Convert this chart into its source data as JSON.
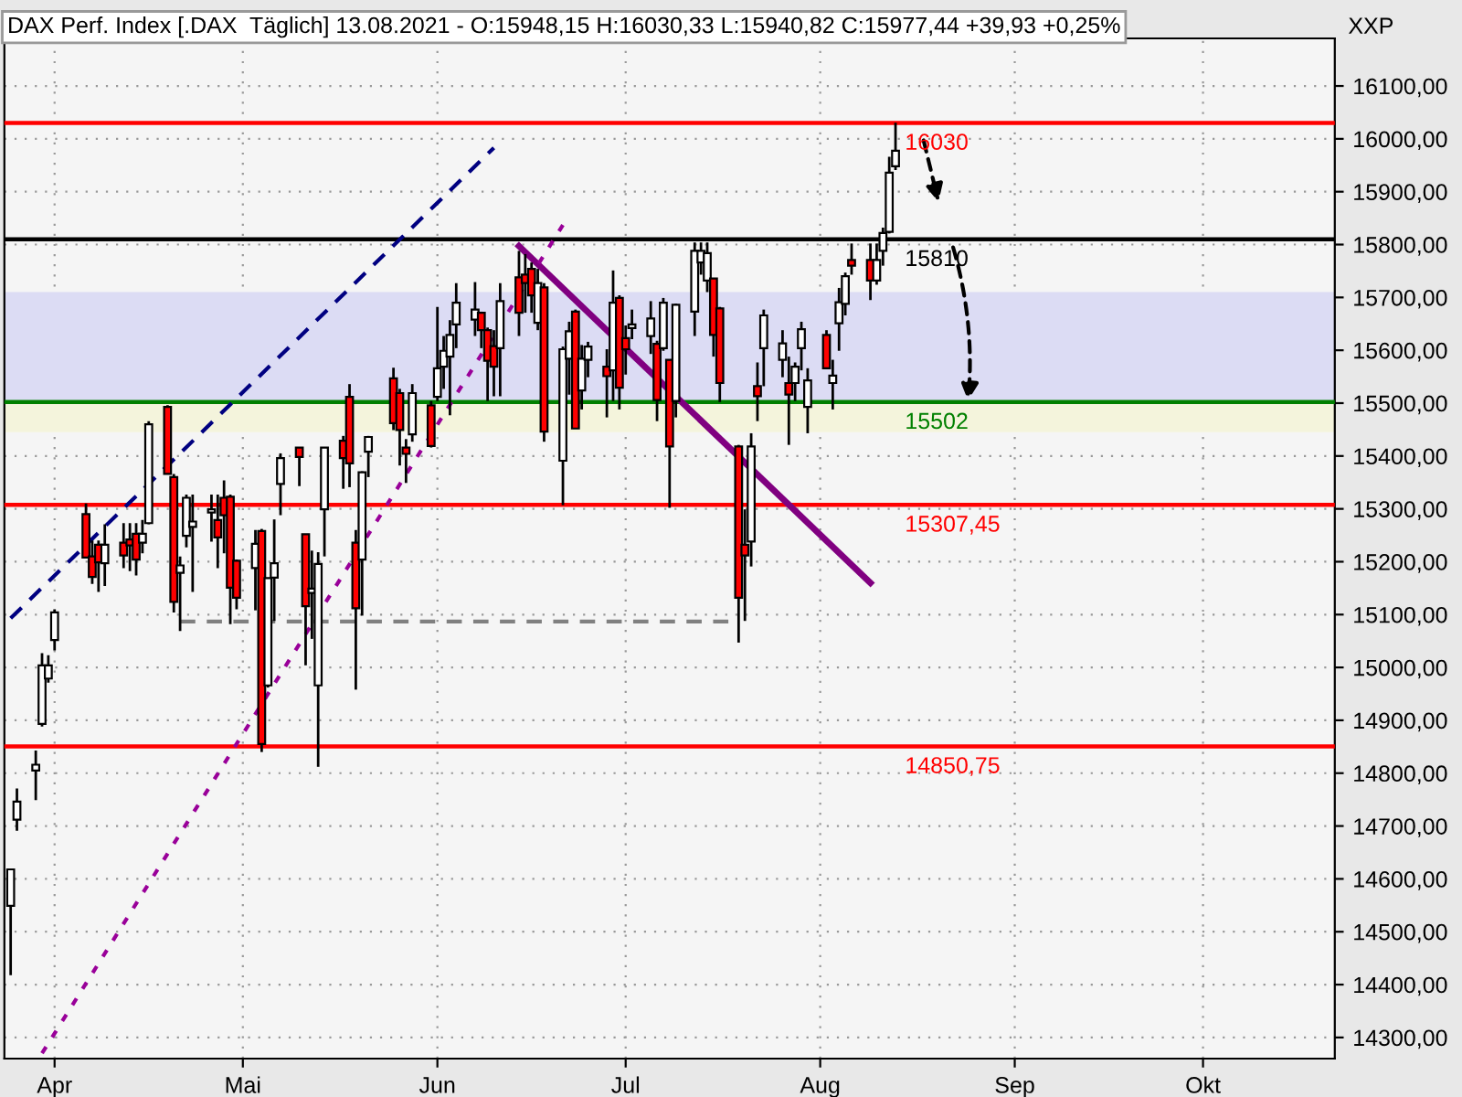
{
  "chart_data": {
    "type": "candlestick",
    "title": "DAX Perf. Index [.DAX  Täglich] 13.08.2021 - O:15948,15 H:16030,33 L:15940,82 C:15977,44 +39,93 +0,25%",
    "ylabel": "XXP",
    "series": [
      {
        "type": "candlestick",
        "x": [
          "2021-03-25",
          "2021-03-26",
          "2021-03-29",
          "2021-03-30",
          "2021-03-31",
          "2021-04-01",
          "2021-04-06",
          "2021-04-07",
          "2021-04-08",
          "2021-04-09",
          "2021-04-12",
          "2021-04-13",
          "2021-04-14",
          "2021-04-15",
          "2021-04-16",
          "2021-04-19",
          "2021-04-20",
          "2021-04-21",
          "2021-04-22",
          "2021-04-23",
          "2021-04-26",
          "2021-04-27",
          "2021-04-28",
          "2021-04-29",
          "2021-04-30",
          "2021-05-03",
          "2021-05-04",
          "2021-05-05",
          "2021-05-06",
          "2021-05-07",
          "2021-05-10",
          "2021-05-11",
          "2021-05-12",
          "2021-05-13",
          "2021-05-14",
          "2021-05-17",
          "2021-05-18",
          "2021-05-19",
          "2021-05-20",
          "2021-05-21",
          "2021-05-25",
          "2021-05-26",
          "2021-05-27",
          "2021-05-28",
          "2021-05-31",
          "2021-06-01",
          "2021-06-02",
          "2021-06-03",
          "2021-06-04",
          "2021-06-07",
          "2021-06-08",
          "2021-06-09",
          "2021-06-10",
          "2021-06-11",
          "2021-06-14",
          "2021-06-15",
          "2021-06-16",
          "2021-06-17",
          "2021-06-18",
          "2021-06-21",
          "2021-06-22",
          "2021-06-23",
          "2021-06-24",
          "2021-06-25",
          "2021-06-28",
          "2021-06-29",
          "2021-06-30",
          "2021-07-01",
          "2021-07-02",
          "2021-07-05",
          "2021-07-06",
          "2021-07-07",
          "2021-07-08",
          "2021-07-09",
          "2021-07-12",
          "2021-07-13",
          "2021-07-14",
          "2021-07-15",
          "2021-07-16",
          "2021-07-19",
          "2021-07-20",
          "2021-07-21",
          "2021-07-22",
          "2021-07-23",
          "2021-07-26",
          "2021-07-27",
          "2021-07-28",
          "2021-07-29",
          "2021-07-30",
          "2021-08-02",
          "2021-08-03",
          "2021-08-04",
          "2021-08-05",
          "2021-08-06",
          "2021-08-09",
          "2021-08-10",
          "2021-08-11",
          "2021-08-12",
          "2021-08-13"
        ],
        "ohlc": [
          [
            14549,
            14618,
            14418,
            14618
          ],
          [
            14712,
            14771,
            14691,
            14746
          ],
          [
            14805,
            14843,
            14749,
            14816
          ],
          [
            14893,
            15027,
            14888,
            15004
          ],
          [
            14979,
            15023,
            14971,
            15004
          ],
          [
            15052,
            15110,
            15032,
            15104
          ],
          [
            15290,
            15310,
            15208,
            15208
          ],
          [
            15210,
            15240,
            15158,
            15171
          ],
          [
            15232,
            15240,
            15143,
            15199
          ],
          [
            15197,
            15271,
            15154,
            15232
          ],
          [
            15236,
            15273,
            15188,
            15212
          ],
          [
            15242,
            15273,
            15182,
            15231
          ],
          [
            15253,
            15273,
            15174,
            15204
          ],
          [
            15236,
            15279,
            15216,
            15253
          ],
          [
            15273,
            15466,
            15271,
            15460
          ],
          [
            15493,
            15496,
            15366,
            15366
          ],
          [
            15360,
            15366,
            15104,
            15124
          ],
          [
            15179,
            15210,
            15069,
            15193
          ],
          [
            15249,
            15327,
            15227,
            15321
          ],
          [
            15266,
            15327,
            15143,
            15276
          ],
          [
            15293,
            15327,
            15238,
            15299
          ],
          [
            15279,
            15327,
            15188,
            15246
          ],
          [
            15321,
            15354,
            15216,
            15288
          ],
          [
            15323,
            15327,
            15082,
            15151
          ],
          [
            15202,
            15204,
            15110,
            15132
          ],
          [
            15188,
            15260,
            15108,
            15234
          ],
          [
            15258,
            15262,
            14840,
            14855
          ],
          [
            14966,
            15169,
            14962,
            15169
          ],
          [
            15170,
            15280,
            15088,
            15197
          ],
          [
            15347,
            15405,
            15288,
            15396
          ],
          [
            15416,
            15416,
            15343,
            15398
          ],
          [
            15252,
            15252,
            15004,
            15116
          ],
          [
            15141,
            15221,
            15054,
            15149
          ],
          [
            14966,
            15218,
            14812,
            15196
          ],
          [
            15299,
            15416,
            15210,
            15416
          ],
          [
            15429,
            15438,
            15338,
            15396
          ],
          [
            15512,
            15536,
            15341,
            15386
          ],
          [
            15236,
            15260,
            14958,
            15112
          ],
          [
            15204,
            15371,
            15098,
            15369
          ],
          [
            15408,
            15438,
            15360,
            15436
          ],
          [
            15547,
            15567,
            15449,
            15462
          ],
          [
            15519,
            15527,
            15382,
            15449
          ],
          [
            15416,
            15432,
            15349,
            15404
          ],
          [
            15441,
            15536,
            15427,
            15519
          ],
          [
            15496,
            15504,
            15416,
            15419
          ],
          [
            15512,
            15682,
            15504,
            15566
          ],
          [
            15569,
            15627,
            15527,
            15599
          ],
          [
            15588,
            15657,
            15477,
            15629
          ],
          [
            15649,
            15727,
            15604,
            15690
          ],
          [
            15658,
            15729,
            15627,
            15677
          ],
          [
            15671,
            15673,
            15604,
            15638
          ],
          [
            15638,
            15643,
            15504,
            15580
          ],
          [
            15608,
            15638,
            15513,
            15569
          ],
          [
            15604,
            15727,
            15513,
            15693
          ],
          [
            15738,
            15788,
            15627,
            15671
          ],
          [
            15743,
            15782,
            15671,
            15727
          ],
          [
            15754,
            15766,
            15671,
            15704
          ],
          [
            15652,
            15754,
            15638,
            15727
          ],
          [
            15719,
            15727,
            15427,
            15446
          ],
          [
            15391,
            15607,
            15307,
            15602
          ],
          [
            15584,
            15654,
            15516,
            15636
          ],
          [
            15673,
            15677,
            15452,
            15452
          ],
          [
            15524,
            15610,
            15488,
            15584
          ],
          [
            15582,
            15616,
            15549,
            15607
          ],
          [
            15569,
            15602,
            15473,
            15551
          ],
          [
            15562,
            15751,
            15504,
            15690
          ],
          [
            15699,
            15704,
            15488,
            15529
          ],
          [
            15623,
            15647,
            15554,
            15602
          ],
          [
            15642,
            15677,
            15621,
            15649
          ],
          [
            15627,
            15693,
            15593,
            15660
          ],
          [
            15612,
            15618,
            15466,
            15506
          ],
          [
            15604,
            15699,
            15599,
            15690
          ],
          [
            15582,
            15582,
            15302,
            15418
          ],
          [
            15504,
            15688,
            15473,
            15686
          ],
          [
            15673,
            15804,
            15627,
            15788
          ],
          [
            15766,
            15804,
            15743,
            15788
          ],
          [
            15732,
            15804,
            15710,
            15784
          ],
          [
            15736,
            15736,
            15588,
            15629
          ],
          [
            15679,
            15682,
            15502,
            15538
          ],
          [
            15418,
            15421,
            15047,
            15132
          ],
          [
            15232,
            15299,
            15088,
            15212
          ],
          [
            15238,
            15443,
            15191,
            15418
          ],
          [
            15532,
            15577,
            15466,
            15513
          ],
          [
            15604,
            15677,
            15532,
            15666
          ],
          [
            15582,
            15638,
            15549,
            15613
          ],
          [
            15538,
            15588,
            15421,
            15516
          ],
          [
            15538,
            15577,
            15504,
            15569
          ],
          [
            15604,
            15654,
            15562,
            15640
          ],
          [
            15493,
            15566,
            15443,
            15543
          ],
          [
            15629,
            15638,
            15566,
            15566
          ],
          [
            15538,
            15582,
            15488,
            15552
          ],
          [
            15651,
            15718,
            15599,
            15691
          ],
          [
            15688,
            15747,
            15666,
            15740
          ],
          [
            15771,
            15802,
            15743,
            15760
          ],
          [
            15771,
            15802,
            15695,
            15732
          ],
          [
            15732,
            15802,
            15724,
            15771
          ],
          [
            15788,
            15832,
            15760,
            15822
          ],
          [
            15824,
            15966,
            15821,
            15936
          ],
          [
            15948.15,
            16030.33,
            15940.82,
            15977.44
          ]
        ]
      },
      {
        "type": "line",
        "x": [
          "2021-03-25",
          "2021-06-10"
        ],
        "values": [
          15093,
          15983
        ],
        "color": "#000080",
        "line_style": "dashed"
      },
      {
        "type": "line",
        "x": [
          "2021-06-14",
          "2021-08-09"
        ],
        "values": [
          15797,
          15160
        ],
        "color": "#800080",
        "line_style": "solid"
      },
      {
        "type": "line",
        "x": [
          "2021-03-30",
          "2021-06-21"
        ],
        "values": [
          14270,
          15837
        ],
        "color": "#990099",
        "line_style": "dotted"
      },
      {
        "type": "line",
        "x": [
          "2021-04-21",
          "2021-07-19"
        ],
        "values": [
          15087,
          15087
        ],
        "color": "#808080",
        "line_style": "dashed"
      }
    ],
    "ref_lines": [
      {
        "axis": "y",
        "value": 16030,
        "label": "16030",
        "color": "#ff0000"
      },
      {
        "axis": "y",
        "value": 15810,
        "label": "15810",
        "color": "#000000"
      },
      {
        "axis": "y",
        "value": 15502,
        "label": "15502",
        "color": "#008000"
      },
      {
        "axis": "y",
        "value": 15307.45,
        "label": "15307,45",
        "color": "#ff0000"
      },
      {
        "axis": "y",
        "value": 14850.75,
        "label": "14850,75",
        "color": "#ff0000"
      }
    ],
    "bands": [
      {
        "axis": "y",
        "from": 15502,
        "to": 15710,
        "color": "#dcdcf4"
      },
      {
        "axis": "y",
        "from": 15445,
        "to": 15502,
        "color": "#f4f4dc"
      }
    ],
    "xlim": [
      "2021-03-24",
      "2021-10-22"
    ],
    "xticks": [
      {
        "value": "2021-04-01",
        "label": "Apr"
      },
      {
        "value": "2021-05-01",
        "label": "Mai"
      },
      {
        "value": "2021-06-01",
        "label": "Jun"
      },
      {
        "value": "2021-07-01",
        "label": "Jul"
      },
      {
        "value": "2021-08-01",
        "label": "Aug"
      },
      {
        "value": "2021-09-01",
        "label": "Sep"
      },
      {
        "value": "2021-10-01",
        "label": "Okt"
      }
    ],
    "ylim": [
      14260,
      16190
    ],
    "yticks": [
      {
        "value": 14300,
        "label": "14300,00"
      },
      {
        "value": 14400,
        "label": "14400,00"
      },
      {
        "value": 14500,
        "label": "14500,00"
      },
      {
        "value": 14600,
        "label": "14600,00"
      },
      {
        "value": 14700,
        "label": "14700,00"
      },
      {
        "value": 14800,
        "label": "14800,00"
      },
      {
        "value": 14900,
        "label": "14900,00"
      },
      {
        "value": 15000,
        "label": "15000,00"
      },
      {
        "value": 15100,
        "label": "15100,00"
      },
      {
        "value": 15200,
        "label": "15200,00"
      },
      {
        "value": 15300,
        "label": "15300,00"
      },
      {
        "value": 15400,
        "label": "15400,00"
      },
      {
        "value": 15500,
        "label": "15500,00"
      },
      {
        "value": 15600,
        "label": "15600,00"
      },
      {
        "value": 15700,
        "label": "15700,00"
      },
      {
        "value": 15800,
        "label": "15800,00"
      },
      {
        "value": 15900,
        "label": "15900,00"
      },
      {
        "value": 16000,
        "label": "16000,00"
      },
      {
        "value": 16100,
        "label": "16100,00"
      }
    ],
    "grid": true
  }
}
